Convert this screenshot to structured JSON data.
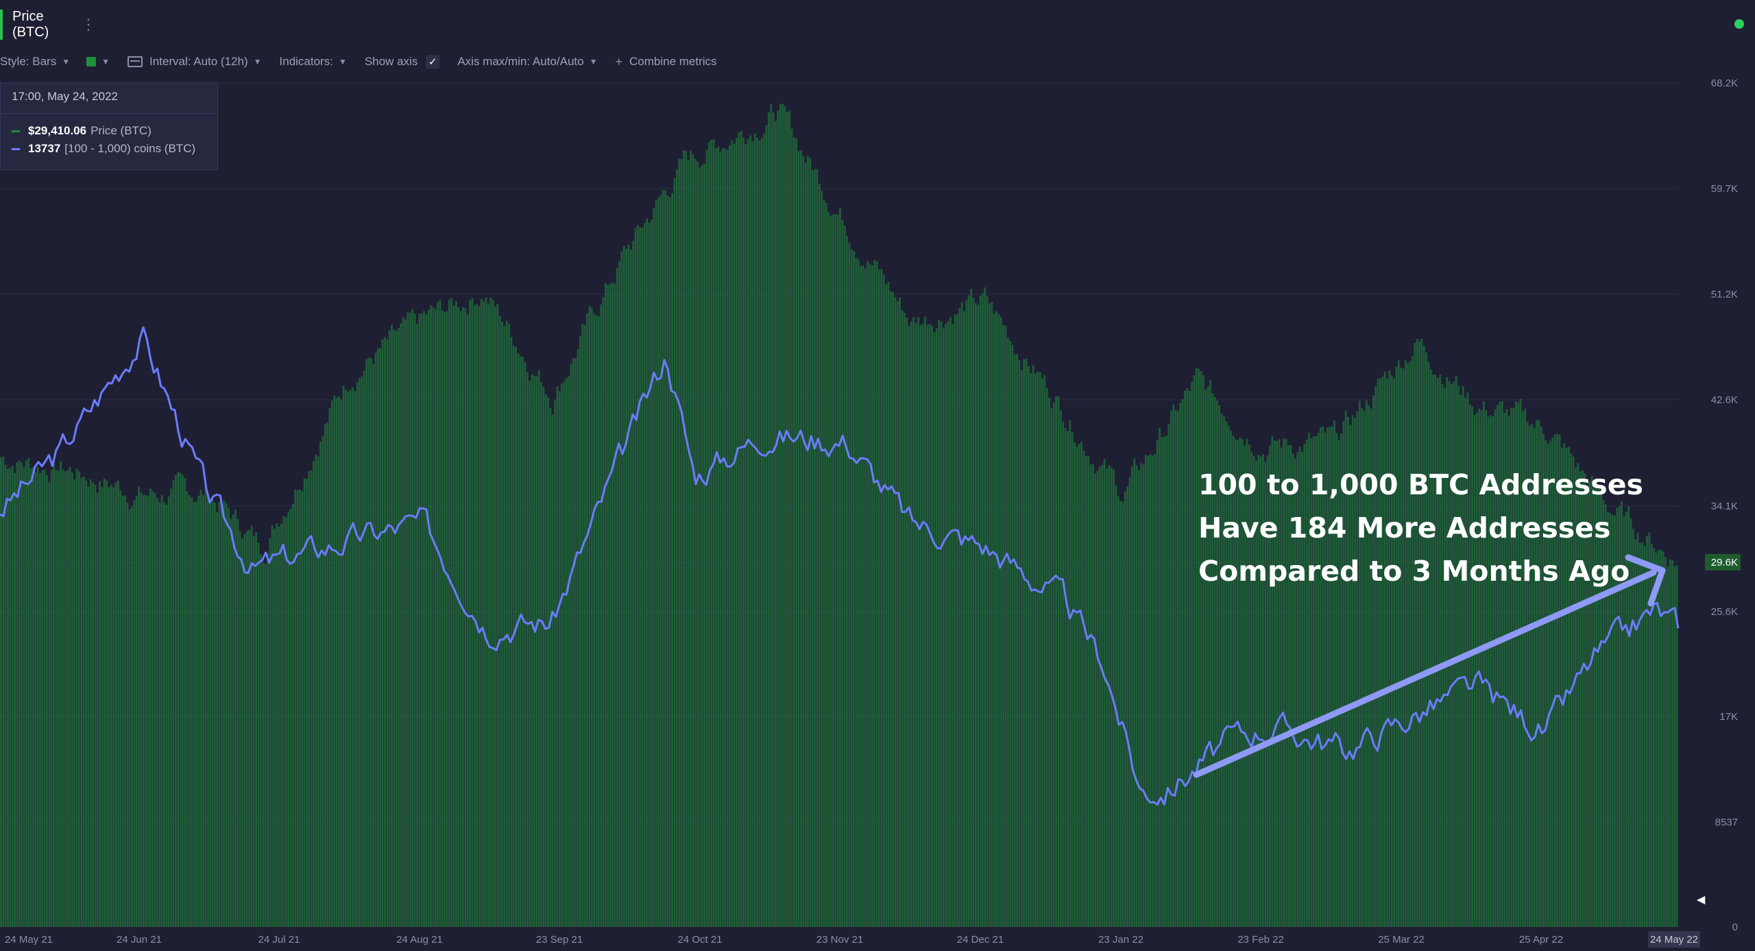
{
  "header": {
    "metric_tab": "Price (BTC)",
    "menu_icon": "vertical-dots-icon",
    "status_color": "#2bd15b"
  },
  "toolbar": {
    "style_label": "Style: Bars",
    "color_value": "#1f8f3c",
    "interval_label": "Interval: Auto (12h)",
    "indicators_label": "Indicators:",
    "show_axis_label": "Show axis",
    "show_axis_checked": "✓",
    "axis_minmax_label": "Axis max/min: Auto/Auto",
    "combine_label": "Combine metrics"
  },
  "tooltip": {
    "date": "17:00, May 24, 2022",
    "rows": [
      {
        "value": "$29,410.06",
        "label": "Price (BTC)",
        "color": "#1f8f3c"
      },
      {
        "value": "13737",
        "label": "[100 - 1,000) coins (BTC)",
        "color": "#6b7cff"
      }
    ]
  },
  "annotation": {
    "lines": [
      "100 to 1,000 BTC Addresses",
      "Have 184 More Addresses",
      "Compared to 3 Months Ago"
    ]
  },
  "chart_data": {
    "type": "bar",
    "x_tick_labels": [
      "24 May 21",
      "24 Jun 21",
      "24 Jul 21",
      "24 Aug 21",
      "23 Sep 21",
      "24 Oct 21",
      "23 Nov 21",
      "24 Dec 21",
      "23 Jan 22",
      "23 Feb 22",
      "25 Mar 22",
      "25 Apr 22",
      "24 May 22"
    ],
    "y_tick_labels": [
      "68.2K",
      "59.7K",
      "51.2K",
      "42.6K",
      "34.1K",
      "29.6K",
      "25.6K",
      "17K",
      "8537",
      "0"
    ],
    "ylim": [
      0,
      68200
    ],
    "current_value_label": "29.6K",
    "x_range": [
      "2021-05-24",
      "2022-05-24"
    ],
    "series": [
      {
        "name": "Price (BTC)",
        "type": "bar",
        "color": "#1f8f3c",
        "x": [
          "2021-05-24",
          "2021-06-08",
          "2021-06-24",
          "2021-07-08",
          "2021-07-20",
          "2021-08-08",
          "2021-08-24",
          "2021-09-06",
          "2021-09-21",
          "2021-10-06",
          "2021-10-20",
          "2021-11-09",
          "2021-11-24",
          "2021-12-08",
          "2021-12-24",
          "2022-01-10",
          "2022-01-23",
          "2022-02-08",
          "2022-02-23",
          "2022-03-10",
          "2022-03-28",
          "2022-04-10",
          "2022-04-25",
          "2022-05-08",
          "2022-05-24"
        ],
        "values": [
          38000,
          37000,
          35000,
          35200,
          30800,
          44800,
          49000,
          51500,
          43000,
          54000,
          62000,
          66000,
          57000,
          49000,
          50600,
          42000,
          35000,
          44000,
          39000,
          39200,
          47500,
          42200,
          40400,
          34300,
          29600
        ]
      },
      {
        "name": "[100 - 1,000) coins (BTC)",
        "type": "line",
        "color": "#6b7cff",
        "x": [
          "2021-05-24",
          "2021-06-06",
          "2021-06-24",
          "2021-07-08",
          "2021-07-18",
          "2021-08-08",
          "2021-08-24",
          "2021-09-07",
          "2021-09-21",
          "2021-10-06",
          "2021-10-16",
          "2021-10-22",
          "2021-11-06",
          "2021-11-24",
          "2021-12-08",
          "2021-12-24",
          "2022-01-10",
          "2022-01-19",
          "2022-01-27",
          "2022-02-02",
          "2022-02-16",
          "2022-02-25",
          "2022-03-13",
          "2022-03-28",
          "2022-04-10",
          "2022-04-25",
          "2022-05-06",
          "2022-05-19",
          "2022-05-24"
        ],
        "values": [
          13900,
          14000,
          14200,
          13930,
          13800,
          13850,
          13880,
          13700,
          13710,
          13990,
          14170,
          13960,
          14030,
          14020,
          13880,
          13840,
          13750,
          13640,
          13420,
          13420,
          13510,
          13530,
          13490,
          13550,
          13600,
          13520,
          13650,
          13730,
          13700
        ]
      }
    ]
  }
}
